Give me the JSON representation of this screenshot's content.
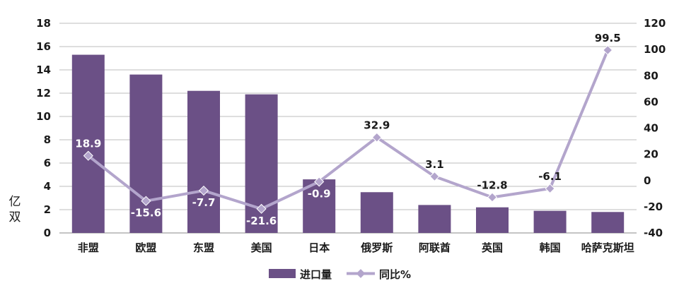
{
  "chart_data": {
    "type": "bar",
    "categories": [
      "非盟",
      "欧盟",
      "东盟",
      "美国",
      "日本",
      "俄罗斯",
      "阿联酋",
      "英国",
      "韩国",
      "哈萨克斯坦"
    ],
    "series": [
      {
        "name": "进口量",
        "type": "bar",
        "axis": "left",
        "values": [
          15.3,
          13.6,
          12.2,
          11.9,
          4.6,
          3.5,
          2.4,
          2.2,
          1.9,
          1.8
        ],
        "color": "#6b5086"
      },
      {
        "name": "同比%",
        "type": "line",
        "axis": "right",
        "values": [
          18.9,
          -15.6,
          -7.7,
          -21.6,
          -0.9,
          32.9,
          3.1,
          -12.8,
          -6.1,
          99.5
        ],
        "data_labels": [
          "18.9",
          "-15.6",
          "-7.7",
          "-21.6",
          "-0.9",
          "32.9",
          "3.1",
          "-12.8",
          "-6.1",
          "99.5"
        ],
        "color": "#b3a5cc"
      }
    ],
    "ylabel": "亿双",
    "ylim": [
      0,
      18
    ],
    "yticks": [
      0,
      2,
      4,
      6,
      8,
      10,
      12,
      14,
      16,
      18
    ],
    "y2lim": [
      -40,
      120
    ],
    "y2ticks": [
      -40,
      -20,
      0,
      20,
      40,
      60,
      80,
      100,
      120
    ],
    "grid": true,
    "legend": "bottom-center"
  }
}
